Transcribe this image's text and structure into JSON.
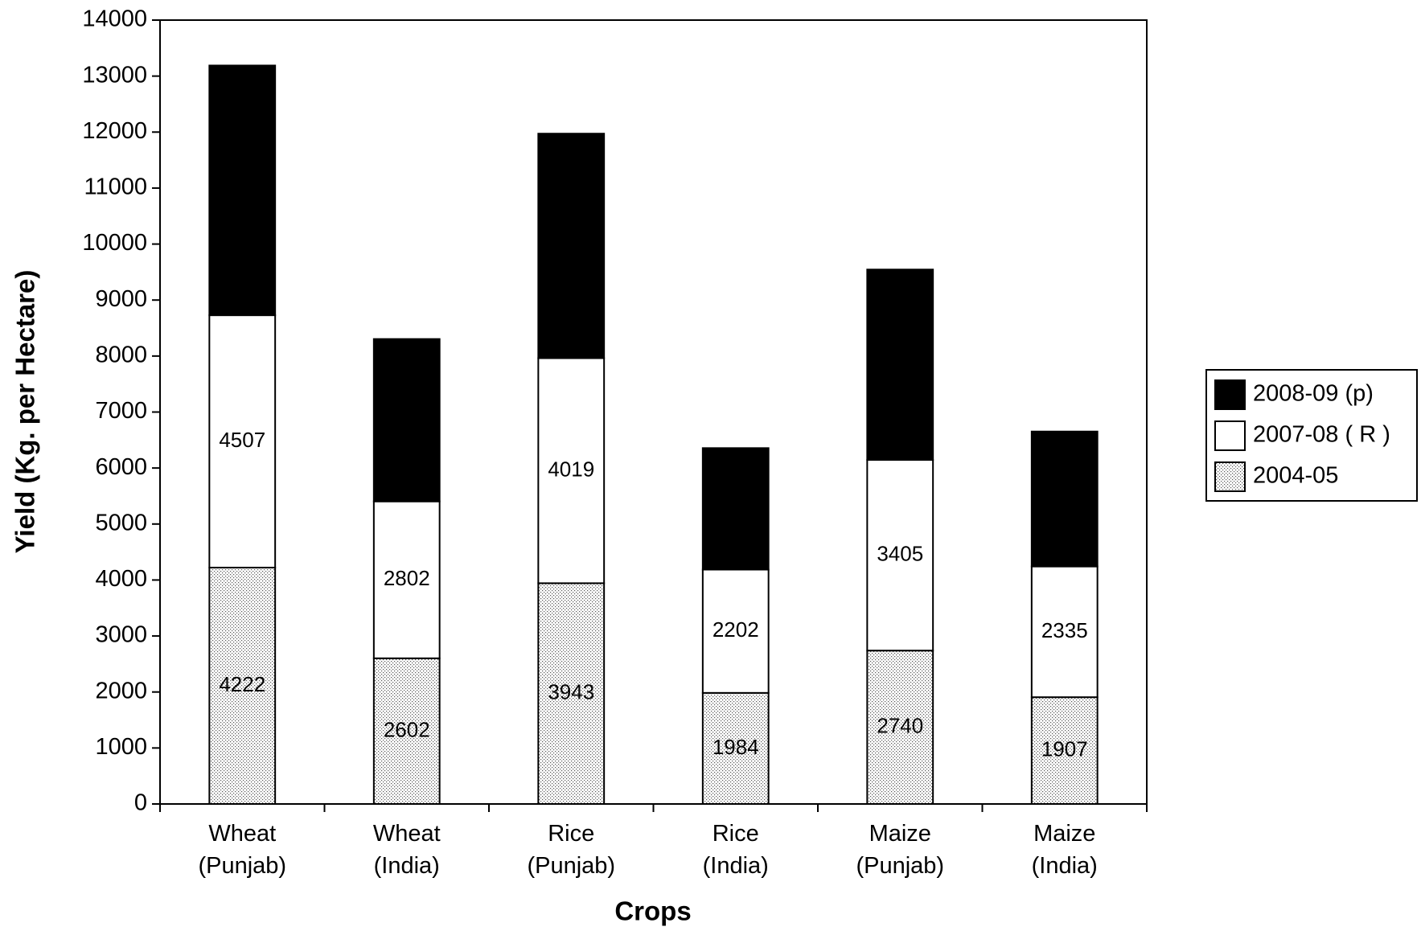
{
  "chart_data": {
    "type": "stacked_bar",
    "xlabel": "Crops",
    "ylabel": "Yield (Kg. per Hectare)",
    "categories": [
      [
        "Wheat",
        "(Punjab)"
      ],
      [
        "Wheat",
        "(India)"
      ],
      [
        "Rice",
        "(Punjab)"
      ],
      [
        "Rice",
        "(India)"
      ],
      [
        "Maize",
        "(Punjab)"
      ],
      [
        "Maize",
        "(India)"
      ]
    ],
    "series": [
      {
        "name": "2004-05",
        "color": "#555555",
        "fill_pattern": "dots",
        "show_labels": true,
        "values": [
          4222,
          2602,
          3943,
          1984,
          2740,
          1907
        ]
      },
      {
        "name": "2007-08 ( R )",
        "color": "#ffffff",
        "show_labels": true,
        "values": [
          4507,
          2802,
          4019,
          2202,
          3405,
          2335
        ]
      },
      {
        "name": "2008-09 (p)",
        "color": "#000000",
        "show_labels": false,
        "values": [
          4460,
          2900,
          4010,
          2170,
          3400,
          2410
        ]
      }
    ],
    "ylim": [
      0,
      14000
    ],
    "yticks": [
      0,
      1000,
      2000,
      3000,
      4000,
      5000,
      6000,
      7000,
      8000,
      9000,
      10000,
      11000,
      12000,
      13000,
      14000
    ],
    "grid": false,
    "legend": "right"
  }
}
